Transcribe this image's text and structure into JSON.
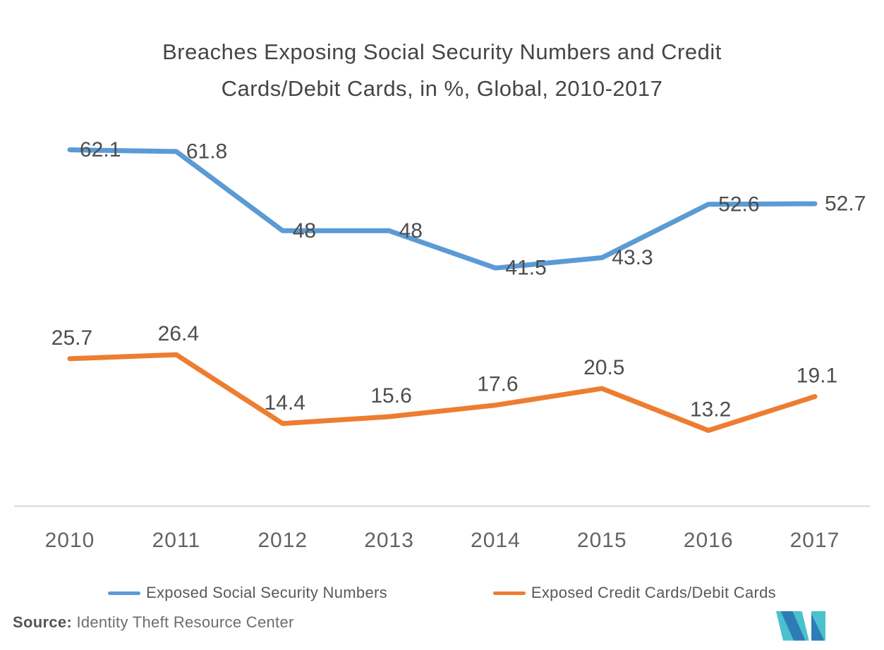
{
  "title": {
    "line1": "Breaches Exposing Social Security Numbers and Credit",
    "line2": "Cards/Debit Cards, in %, Global, 2010-2017"
  },
  "chart_data": {
    "type": "line",
    "title": "Breaches Exposing Social Security Numbers and Credit Cards/Debit Cards, in %, Global, 2010-2017",
    "categories": [
      "2010",
      "2011",
      "2012",
      "2013",
      "2014",
      "2015",
      "2016",
      "2017"
    ],
    "series": [
      {
        "name": "Exposed Social Security Numbers",
        "color": "#5B9BD5",
        "values": [
          62.1,
          61.8,
          48,
          48,
          41.5,
          43.3,
          52.6,
          52.7
        ],
        "label_position": "right"
      },
      {
        "name": "Exposed Credit Cards/Debit Cards",
        "color": "#ED7D31",
        "values": [
          25.7,
          26.4,
          14.4,
          15.6,
          17.6,
          20.5,
          13.2,
          19.1
        ],
        "label_position": "above"
      }
    ],
    "xlabel": "",
    "ylabel": "",
    "ylim": [
      0,
      70
    ],
    "grid": false,
    "data_labels": true,
    "legend_position": "bottom",
    "colors": {
      "axis_line": "#D9D9D9",
      "data_label": "#4D4D4D",
      "tick_label": "#636363"
    }
  },
  "source": {
    "label": "Source:",
    "text": "Identity Theft Resource Center"
  },
  "logo": {
    "name": "mordor-intelligence-logo",
    "teal": "#4AC1CE",
    "blue": "#2E7CB5"
  }
}
